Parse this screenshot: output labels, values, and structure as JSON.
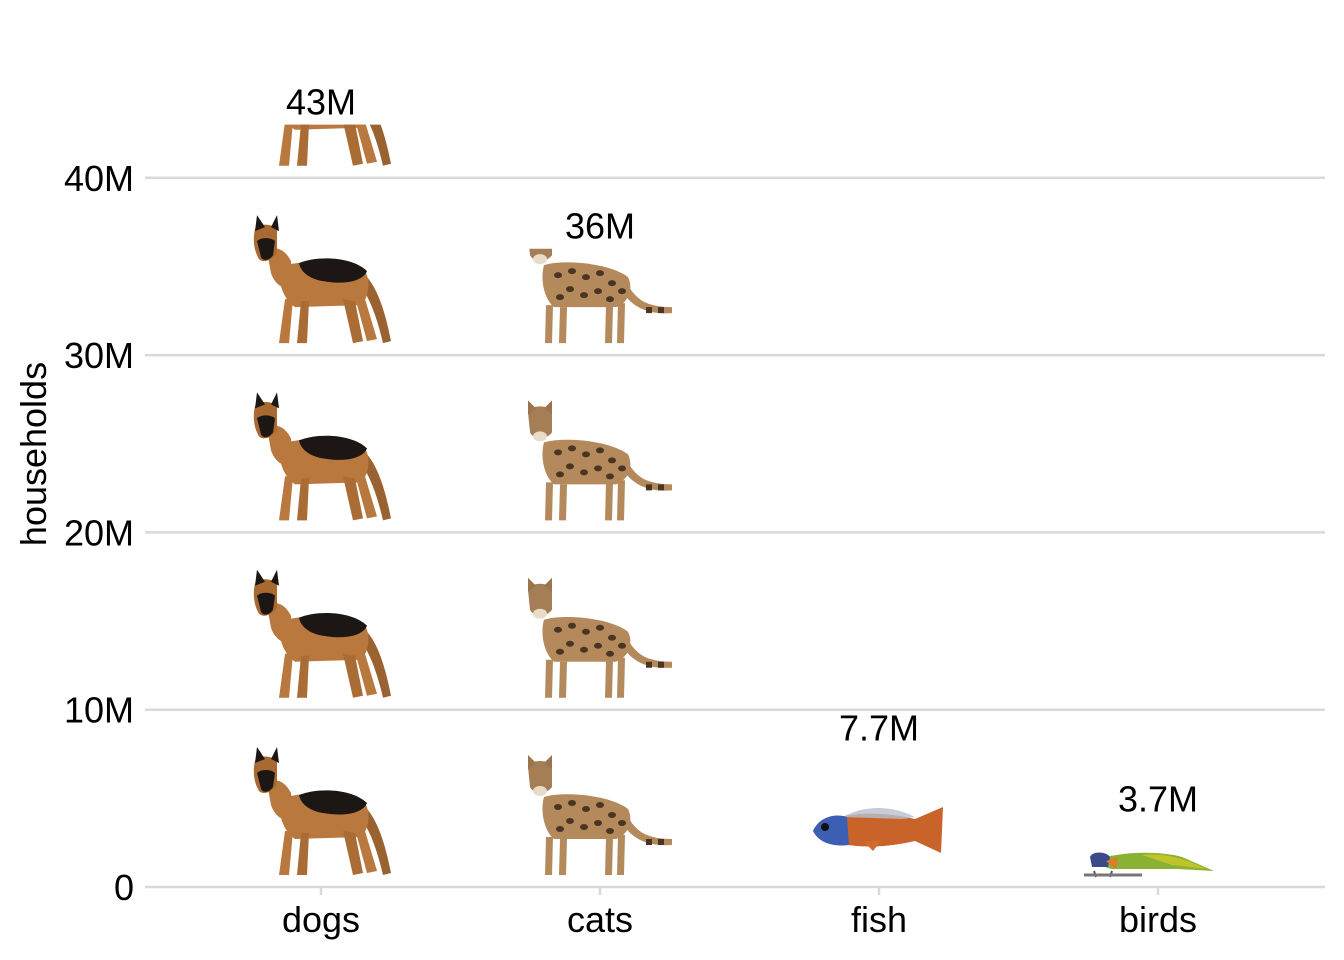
{
  "chart_data": {
    "type": "bar",
    "categories": [
      "dogs",
      "cats",
      "fish",
      "birds"
    ],
    "values": [
      43,
      36,
      7.7,
      3.7
    ],
    "value_labels": [
      "43M",
      "36M",
      "7.7M",
      "3.7M"
    ],
    "unit_per_icon": 10,
    "icons": [
      "dog-icon",
      "cat-icon",
      "fish-icon",
      "bird-icon"
    ],
    "title": "",
    "xlabel": "",
    "ylabel": "households",
    "ylim": [
      0,
      45
    ],
    "yticks": [
      0,
      10,
      20,
      30,
      40
    ],
    "ytick_labels": [
      "0",
      "10M",
      "20M",
      "30M",
      "40M"
    ],
    "grid": "horizontal",
    "legend": "none",
    "colors": {
      "grid": "#d9d9d9",
      "dog_tan": "#b9783d",
      "dog_black": "#1c1714",
      "cat_base": "#b48a5c",
      "cat_spot": "#4a3522",
      "fish_body": "#c8642a",
      "fish_head": "#3c5fb4",
      "bird_body": "#8ab232",
      "bird_head": "#3a4a8a"
    }
  }
}
